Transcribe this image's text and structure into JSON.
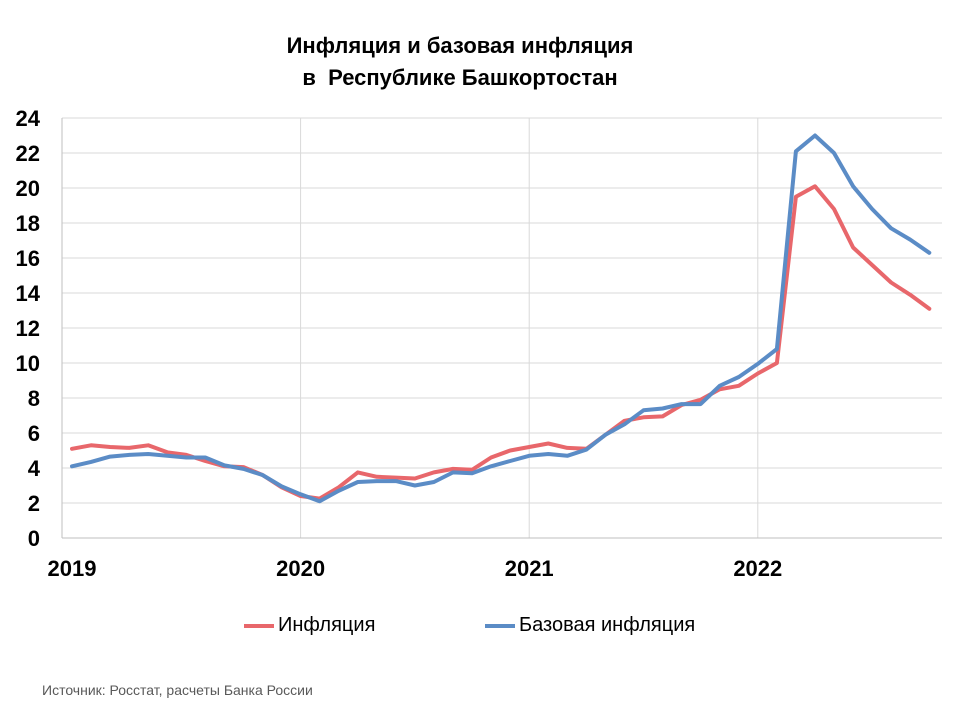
{
  "chart_data": {
    "type": "line",
    "title_line1": "Инфляция и базовая инфляция",
    "title_line2": "в  Республике Башкортостан",
    "xlabel": "",
    "ylabel": "",
    "ylim": [
      0,
      24
    ],
    "yticks": [
      "0",
      "2",
      "4",
      "6",
      "8",
      "10",
      "12",
      "14",
      "16",
      "18",
      "20",
      "22",
      "24"
    ],
    "xticks": [
      "2019",
      "2020",
      "2021",
      "2022"
    ],
    "grid": true,
    "legend_position": "bottom",
    "x": [
      "2019-01",
      "2019-02",
      "2019-03",
      "2019-04",
      "2019-05",
      "2019-06",
      "2019-07",
      "2019-08",
      "2019-09",
      "2019-10",
      "2019-11",
      "2019-12",
      "2020-01",
      "2020-02",
      "2020-03",
      "2020-04",
      "2020-05",
      "2020-06",
      "2020-07",
      "2020-08",
      "2020-09",
      "2020-10",
      "2020-11",
      "2020-12",
      "2021-01",
      "2021-02",
      "2021-03",
      "2021-04",
      "2021-05",
      "2021-06",
      "2021-07",
      "2021-08",
      "2021-09",
      "2021-10",
      "2021-11",
      "2021-12",
      "2022-01",
      "2022-02",
      "2022-03",
      "2022-04",
      "2022-05",
      "2022-06",
      "2022-07",
      "2022-08",
      "2022-09",
      "2022-10"
    ],
    "series": [
      {
        "name": "Инфляция",
        "color": "#e8676b",
        "values": [
          5.1,
          5.3,
          5.2,
          5.15,
          5.3,
          4.9,
          4.75,
          4.4,
          4.1,
          4.05,
          3.6,
          2.9,
          2.4,
          2.25,
          2.9,
          3.75,
          3.5,
          3.45,
          3.4,
          3.75,
          3.95,
          3.9,
          4.6,
          5.0,
          5.2,
          5.4,
          5.15,
          5.1,
          5.9,
          6.7,
          6.9,
          6.95,
          7.6,
          7.9,
          8.5,
          8.7,
          9.4,
          10.0,
          19.5,
          20.1,
          18.8,
          16.6,
          15.6,
          14.6,
          13.9,
          13.1
        ]
      },
      {
        "name": "Базовая инфляция",
        "color": "#5b8cc6",
        "values": [
          4.1,
          4.35,
          4.65,
          4.75,
          4.8,
          4.7,
          4.6,
          4.6,
          4.15,
          3.95,
          3.6,
          2.95,
          2.5,
          2.1,
          2.7,
          3.2,
          3.25,
          3.25,
          3.0,
          3.2,
          3.75,
          3.7,
          4.1,
          4.4,
          4.7,
          4.8,
          4.7,
          5.05,
          5.9,
          6.5,
          7.3,
          7.4,
          7.65,
          7.65,
          8.7,
          9.2,
          9.95,
          10.8,
          22.1,
          23.0,
          22.0,
          20.1,
          18.8,
          17.7,
          17.05,
          16.3
        ]
      }
    ]
  },
  "source_text": "Источник: Росстат, расчеты Банка России"
}
